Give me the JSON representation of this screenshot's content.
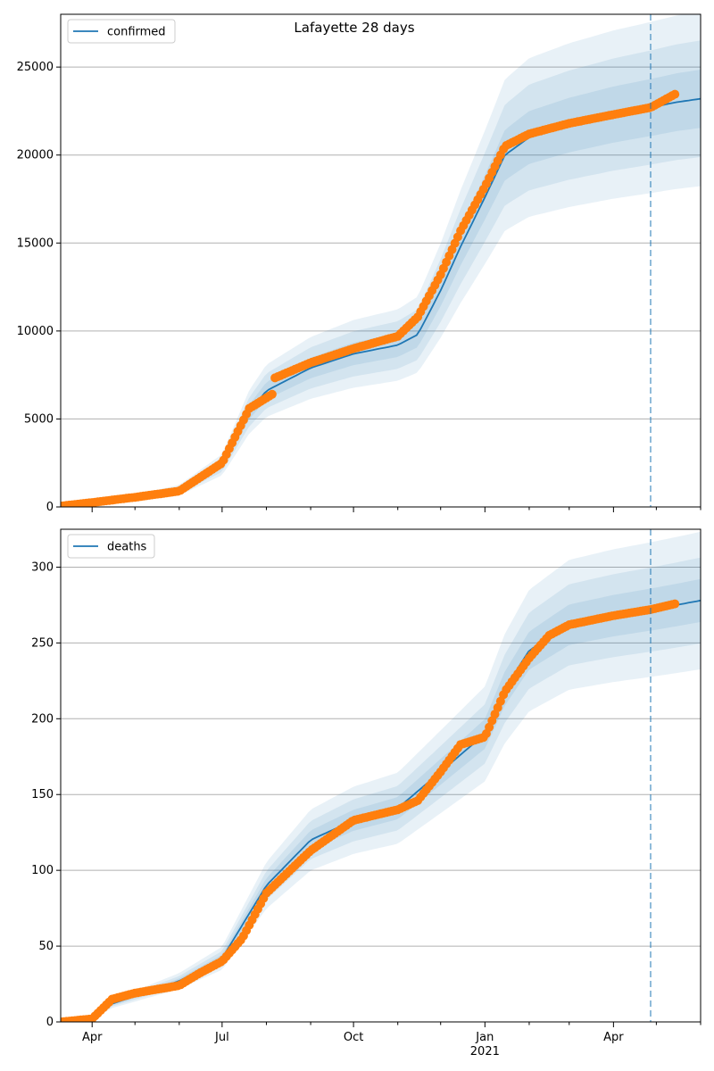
{
  "title": "Lafayette 28 days",
  "colors": {
    "model": "#1f77b4",
    "observed": "#ff7f0e",
    "band": "#1f77b4",
    "grid": "#b0b0b0"
  },
  "x_axis": {
    "ticks": [
      {
        "label": "Apr",
        "sub": ""
      },
      {
        "label": "Jul",
        "sub": ""
      },
      {
        "label": "Oct",
        "sub": ""
      },
      {
        "label": "Jan",
        "sub": "2021"
      },
      {
        "label": "Apr",
        "sub": ""
      }
    ]
  },
  "chart_data": [
    {
      "type": "line",
      "legend": "confirmed",
      "legend_position": "upper-left",
      "grid": "horizontal",
      "ylim": [
        0,
        28000
      ],
      "yticks": [
        "0",
        "5000",
        "10000",
        "15000",
        "20000",
        "25000"
      ],
      "forecast_start": "2021-04-27",
      "x": [
        "2020-03-10",
        "2020-04-01",
        "2020-05-01",
        "2020-06-01",
        "2020-07-01",
        "2020-07-20",
        "2020-08-01",
        "2020-09-01",
        "2020-10-01",
        "2020-11-01",
        "2020-11-15",
        "2020-12-01",
        "2020-12-15",
        "2021-01-01",
        "2021-01-15",
        "2021-02-01",
        "2021-03-01",
        "2021-04-01",
        "2021-04-27",
        "2021-05-15",
        "2021-06-01"
      ],
      "model": [
        0,
        200,
        500,
        950,
        2400,
        5400,
        6600,
        7900,
        8700,
        9200,
        9800,
        12300,
        14800,
        17600,
        20000,
        21000,
        21700,
        22300,
        22700,
        23000,
        23200
      ],
      "observed": {
        "x": [
          "2020-03-10",
          "2020-04-01",
          "2020-05-01",
          "2020-06-01",
          "2020-07-01",
          "2020-07-20",
          "2020-08-05",
          "2020-08-06",
          "2020-09-01",
          "2020-10-01",
          "2020-11-01",
          "2020-11-15",
          "2020-12-01",
          "2020-12-15",
          "2021-01-01",
          "2021-01-15",
          "2021-02-01",
          "2021-03-01",
          "2021-04-01",
          "2021-04-27",
          "2021-05-15"
        ],
        "y": [
          50,
          250,
          550,
          900,
          2500,
          5600,
          6400,
          7300,
          8200,
          9000,
          9700,
          10800,
          13200,
          15700,
          18200,
          20500,
          21200,
          21800,
          22300,
          22700,
          23500
        ]
      },
      "band_offsets": [
        0.07,
        0.14,
        0.21
      ]
    },
    {
      "type": "line",
      "legend": "deaths",
      "legend_position": "upper-left",
      "grid": "horizontal",
      "ylim": [
        0,
        325
      ],
      "yticks": [
        "0",
        "50",
        "100",
        "150",
        "200",
        "250",
        "300"
      ],
      "forecast_start": "2021-04-27",
      "x": [
        "2020-03-10",
        "2020-04-01",
        "2020-04-15",
        "2020-05-01",
        "2020-06-01",
        "2020-07-01",
        "2020-08-01",
        "2020-09-01",
        "2020-10-01",
        "2020-11-01",
        "2020-12-01",
        "2021-01-01",
        "2021-01-15",
        "2021-02-01",
        "2021-03-01",
        "2021-04-01",
        "2021-04-27",
        "2021-05-15",
        "2021-06-01"
      ],
      "model": [
        0,
        3,
        12,
        17,
        27,
        42,
        90,
        120,
        133,
        141,
        165,
        190,
        220,
        245,
        262,
        268,
        272,
        275,
        278
      ],
      "observed": {
        "x": [
          "2020-03-10",
          "2020-04-01",
          "2020-04-15",
          "2020-05-01",
          "2020-06-01",
          "2020-06-15",
          "2020-07-01",
          "2020-07-15",
          "2020-08-01",
          "2020-09-01",
          "2020-10-01",
          "2020-11-01",
          "2020-11-15",
          "2020-12-01",
          "2020-12-15",
          "2021-01-01",
          "2021-01-15",
          "2021-02-01",
          "2021-02-15",
          "2021-03-01",
          "2021-04-01",
          "2021-04-27",
          "2021-05-15"
        ],
        "y": [
          0,
          2,
          15,
          19,
          24,
          32,
          40,
          55,
          85,
          113,
          133,
          140,
          146,
          165,
          183,
          188,
          218,
          240,
          255,
          262,
          268,
          272,
          276
        ]
      },
      "band_offsets": [
        0.05,
        0.1,
        0.16
      ]
    }
  ]
}
